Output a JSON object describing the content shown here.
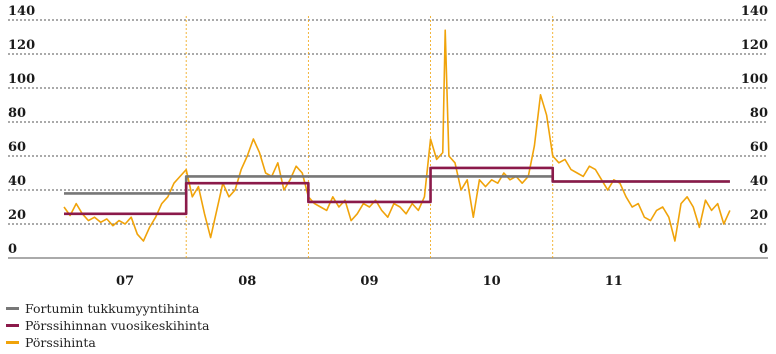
{
  "chart_data": {
    "type": "line",
    "ylim": [
      0,
      140
    ],
    "yticks": [
      "0",
      "20",
      "40",
      "60",
      "80",
      "100",
      "120",
      "140"
    ],
    "xtick_labels": [
      "07",
      "08",
      "09",
      "10",
      "11"
    ],
    "xlim": [
      2006.5,
      2012.0
    ],
    "grid": true,
    "legend_position": "bottom-left",
    "series": [
      {
        "name": "Fortumin tukkumyyntihinta",
        "color": "#777777",
        "step": true,
        "x": [
          2006.5,
          2007.5,
          2010.5,
          2011.95
        ],
        "y": [
          38,
          48,
          45,
          45
        ]
      },
      {
        "name": "Pörssihinnan vuosikeskihinta",
        "color": "#8b1a4a",
        "step": true,
        "x": [
          2006.5,
          2007.5,
          2008.5,
          2009.5,
          2010.5,
          2011.95
        ],
        "y": [
          26,
          44,
          33,
          53,
          45,
          45
        ]
      },
      {
        "name": "Pörssihinta",
        "color": "#f0a30a",
        "step": false,
        "x": [
          2006.5,
          2006.55,
          2006.6,
          2006.65,
          2006.7,
          2006.75,
          2006.8,
          2006.85,
          2006.9,
          2006.95,
          2007.0,
          2007.05,
          2007.1,
          2007.15,
          2007.2,
          2007.25,
          2007.3,
          2007.35,
          2007.4,
          2007.45,
          2007.5,
          2007.55,
          2007.6,
          2007.65,
          2007.7,
          2007.75,
          2007.8,
          2007.85,
          2007.9,
          2007.95,
          2008.0,
          2008.05,
          2008.1,
          2008.15,
          2008.2,
          2008.25,
          2008.3,
          2008.35,
          2008.4,
          2008.45,
          2008.5,
          2008.55,
          2008.6,
          2008.65,
          2008.7,
          2008.75,
          2008.8,
          2008.85,
          2008.9,
          2008.95,
          2009.0,
          2009.05,
          2009.1,
          2009.15,
          2009.2,
          2009.25,
          2009.3,
          2009.35,
          2009.4,
          2009.45,
          2009.5,
          2009.55,
          2009.6,
          2009.62,
          2009.65,
          2009.7,
          2009.75,
          2009.8,
          2009.85,
          2009.9,
          2009.95,
          2010.0,
          2010.05,
          2010.1,
          2010.15,
          2010.2,
          2010.25,
          2010.3,
          2010.35,
          2010.4,
          2010.45,
          2010.5,
          2010.55,
          2010.6,
          2010.65,
          2010.7,
          2010.75,
          2010.8,
          2010.85,
          2010.9,
          2010.95,
          2011.0,
          2011.05,
          2011.1,
          2011.15,
          2011.2,
          2011.25,
          2011.3,
          2011.35,
          2011.4,
          2011.45,
          2011.5,
          2011.55,
          2011.6,
          2011.65,
          2011.7,
          2011.75,
          2011.8,
          2011.85,
          2011.9,
          2011.95
        ],
        "y": [
          30,
          25,
          32,
          26,
          22,
          24,
          21,
          23,
          19,
          22,
          20,
          24,
          14,
          10,
          18,
          24,
          32,
          36,
          44,
          48,
          52,
          36,
          42,
          26,
          12,
          28,
          44,
          36,
          40,
          52,
          60,
          70,
          62,
          50,
          48,
          56,
          40,
          46,
          54,
          50,
          36,
          32,
          30,
          28,
          36,
          30,
          34,
          22,
          26,
          32,
          30,
          34,
          28,
          24,
          32,
          30,
          26,
          32,
          28,
          36,
          70,
          58,
          62,
          134,
          60,
          56,
          40,
          46,
          24,
          46,
          42,
          46,
          44,
          50,
          46,
          48,
          44,
          48,
          66,
          96,
          84,
          60,
          56,
          58,
          52,
          50,
          48,
          54,
          52,
          46,
          40,
          46,
          44,
          36,
          30,
          32,
          24,
          22,
          28,
          30,
          24,
          10,
          32,
          36,
          30,
          18,
          34,
          28,
          32,
          20,
          28
        ]
      }
    ]
  }
}
